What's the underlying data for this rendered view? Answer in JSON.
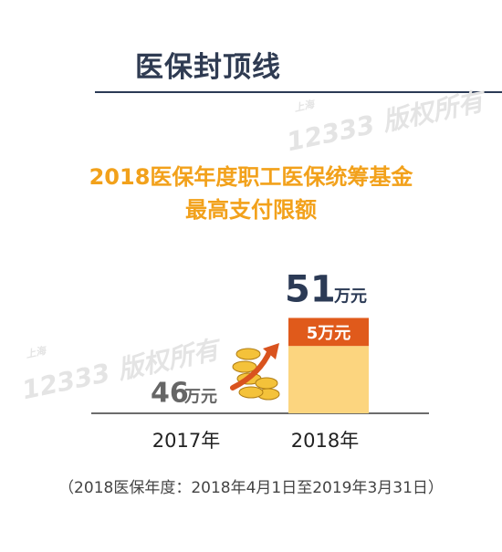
{
  "header": {
    "title": "医保封顶线"
  },
  "watermark": {
    "small": "上海",
    "big": "12333 版权所有"
  },
  "chart_data": {
    "type": "bar",
    "title_line1": "2018医保年度职工医保统筹基金",
    "title_line2": "最高支付限额",
    "categories": [
      "2017年",
      "2018年"
    ],
    "values": [
      46,
      51
    ],
    "unit": "万元",
    "value_labels": [
      "46",
      "51"
    ],
    "increase": {
      "value": 5,
      "label": "5万元"
    },
    "colors": {
      "bar": "#fcd57f",
      "increase": "#e05a1b",
      "value_text_2017": "#666666",
      "value_text_2018": "#2b3a55"
    },
    "ylim": [
      0,
      60
    ]
  },
  "footnote": "（2018医保年度：2018年4月1日至2019年3月31日）"
}
